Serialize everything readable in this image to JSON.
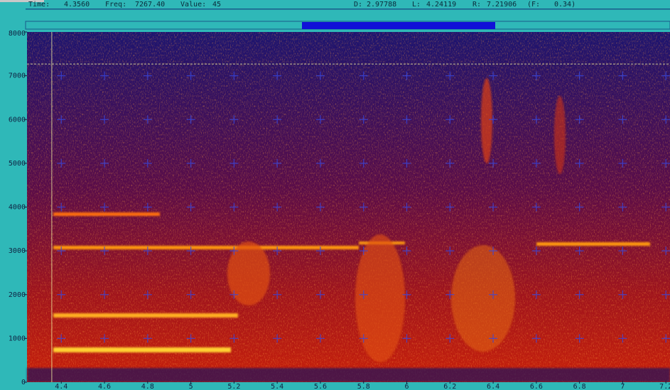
{
  "status": {
    "time_label": "Time:",
    "time": "4.3560",
    "freq_label": "Freq:",
    "freq": "7267.40",
    "value_label": "Value:",
    "value": "45",
    "d_label": "D:",
    "d": 2.97788,
    "l_label": "L:",
    "l": 4.24119,
    "r_label": "R:",
    "r": 7.21906,
    "f_label": "(F:",
    "f": "0.34)"
  },
  "axes": {
    "ylim": [
      0,
      8000
    ],
    "yticks": [
      0,
      1000,
      2000,
      3000,
      4000,
      5000,
      6000,
      7000,
      8000
    ],
    "xticks": [
      4.4,
      4.6,
      4.8,
      5,
      5.2,
      5.4,
      5.6,
      5.8,
      6,
      6.2,
      6.4,
      6.6,
      6.8,
      7,
      7.2
    ]
  }
}
